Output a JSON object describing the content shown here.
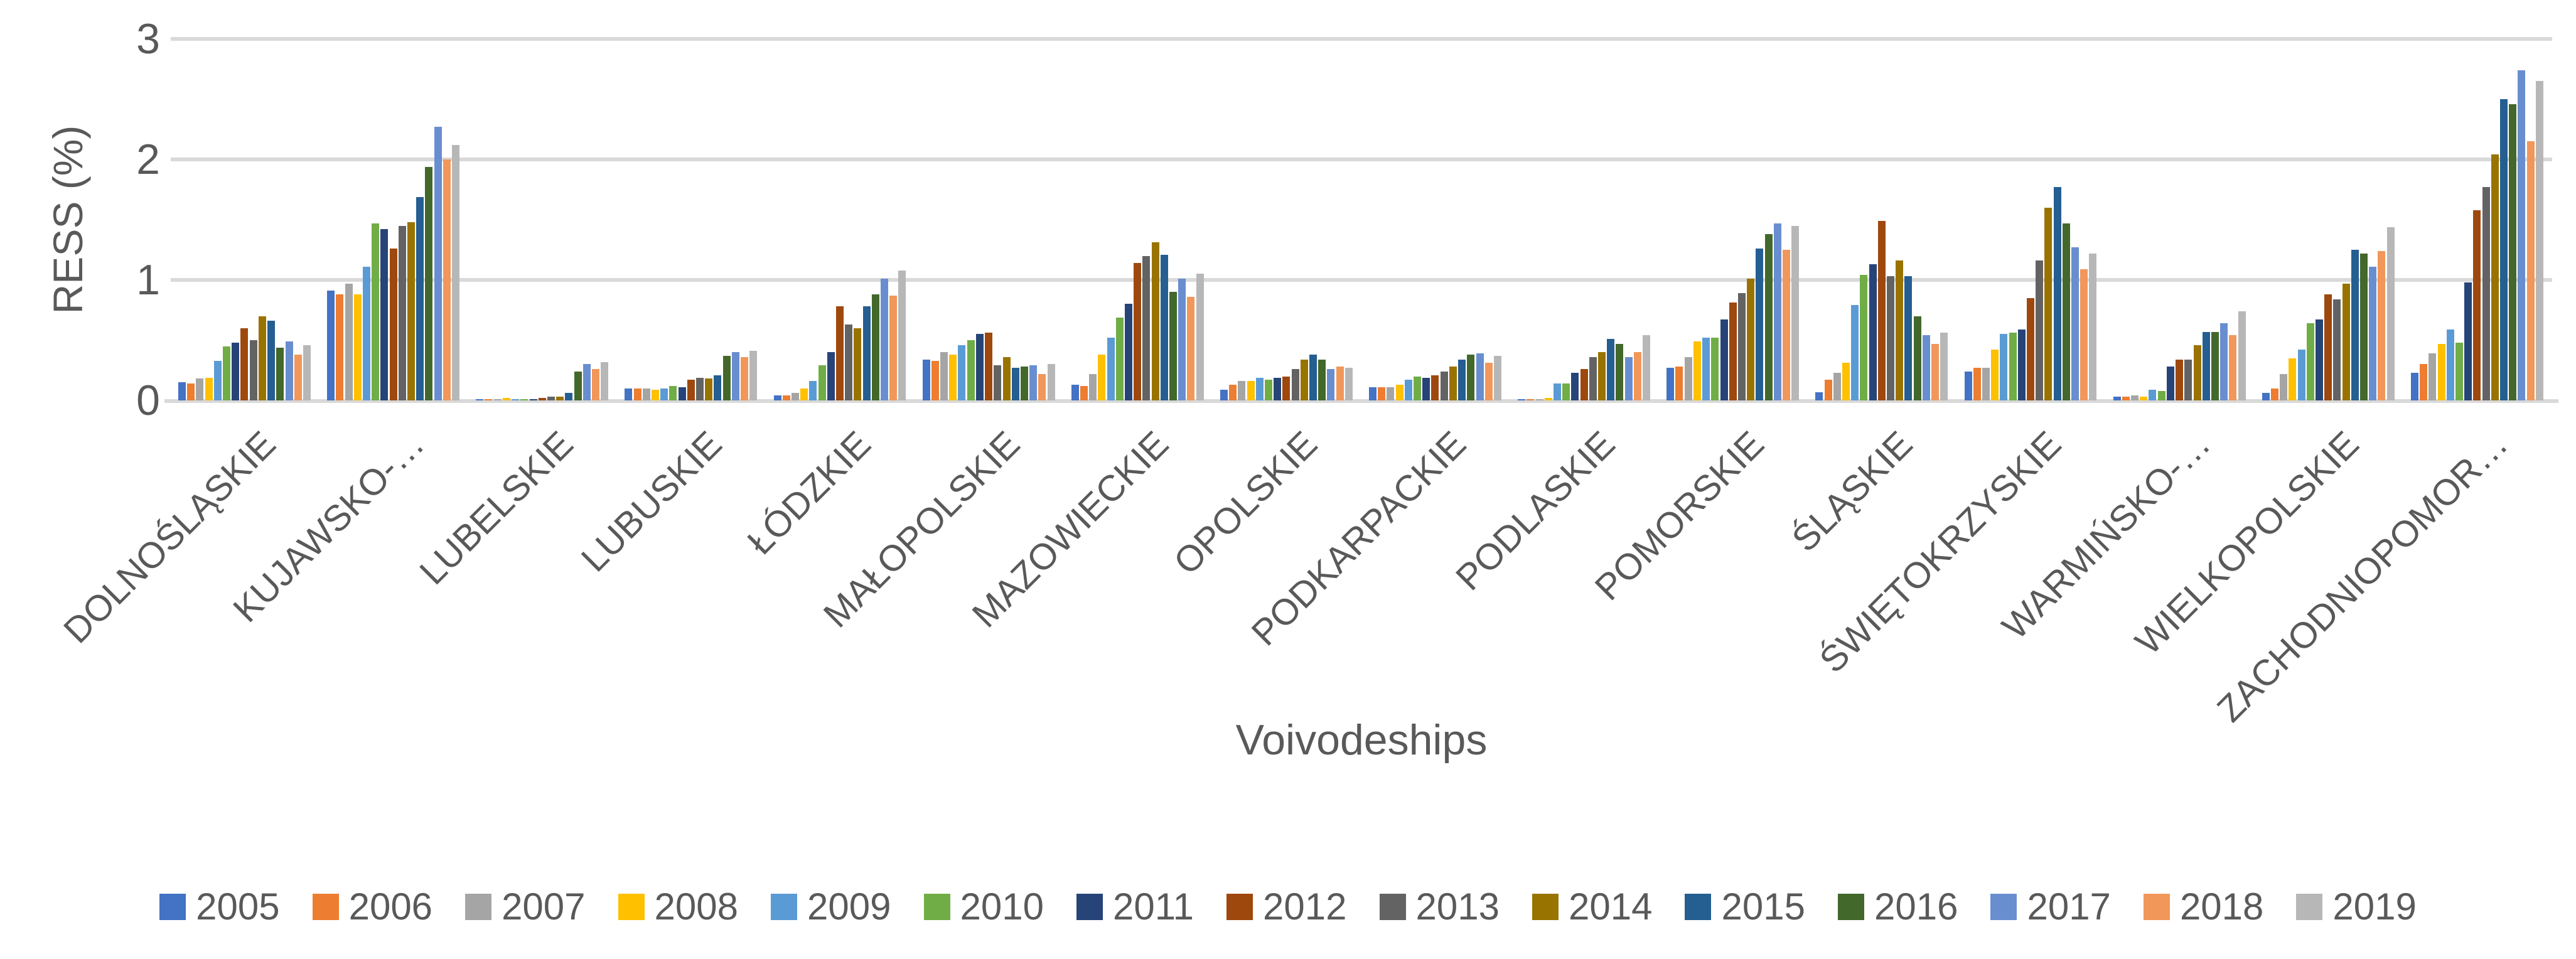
{
  "chart_data": {
    "type": "bar",
    "title": "",
    "xlabel": "Voivodeships",
    "ylabel": "RESS (%)",
    "ylim": [
      0,
      3
    ],
    "yticks": [
      "0",
      "1",
      "2",
      "3"
    ],
    "grid": "horizontal-gridlines-at-1-2-3",
    "legend_position": "bottom",
    "gridline_color": "#D9D9D9",
    "axis_text_color": "#595959",
    "categories": [
      "DOLNOŚLĄSKIE",
      "KUJAWSKO-…",
      "LUBELSKIE",
      "LUBUSKIE",
      "ŁÓDZKIE",
      "MAŁOPOLSKIE",
      "MAZOWIECKIE",
      "OPOLSKIE",
      "PODKARPACKIE",
      "PODLASKIE",
      "POMORSKIE",
      "ŚLĄSKIE",
      "ŚWIĘTOKRZYSKIE",
      "WARMIŃSKO-…",
      "WIELKOPOLSKIE",
      "ZACHODNIOPOMOR…"
    ],
    "series": [
      {
        "name": "2005",
        "color": "#4472C4",
        "values": [
          0.15,
          0.91,
          0.01,
          0.1,
          0.04,
          0.34,
          0.13,
          0.09,
          0.11,
          0.01,
          0.27,
          0.07,
          0.24,
          0.03,
          0.06,
          0.23
        ]
      },
      {
        "name": "2006",
        "color": "#ED7D31",
        "values": [
          0.14,
          0.88,
          0.01,
          0.1,
          0.04,
          0.33,
          0.12,
          0.13,
          0.11,
          0.01,
          0.28,
          0.17,
          0.27,
          0.03,
          0.1,
          0.3
        ]
      },
      {
        "name": "2007",
        "color": "#A5A5A5",
        "values": [
          0.18,
          0.97,
          0.01,
          0.1,
          0.06,
          0.4,
          0.22,
          0.16,
          0.11,
          0.01,
          0.36,
          0.23,
          0.27,
          0.04,
          0.22,
          0.39
        ]
      },
      {
        "name": "2008",
        "color": "#FFC000",
        "values": [
          0.19,
          0.88,
          0.02,
          0.09,
          0.1,
          0.38,
          0.38,
          0.16,
          0.13,
          0.02,
          0.49,
          0.31,
          0.42,
          0.03,
          0.35,
          0.47
        ]
      },
      {
        "name": "2009",
        "color": "#5B9BD5",
        "values": [
          0.33,
          1.11,
          0.01,
          0.1,
          0.16,
          0.46,
          0.52,
          0.19,
          0.17,
          0.14,
          0.52,
          0.79,
          0.55,
          0.09,
          0.42,
          0.59
        ]
      },
      {
        "name": "2010",
        "color": "#70AD47",
        "values": [
          0.45,
          1.47,
          0.01,
          0.12,
          0.29,
          0.5,
          0.69,
          0.17,
          0.2,
          0.14,
          0.52,
          1.04,
          0.56,
          0.08,
          0.64,
          0.48
        ]
      },
      {
        "name": "2011",
        "color": "#264478",
        "values": [
          0.48,
          1.42,
          0.01,
          0.11,
          0.4,
          0.55,
          0.8,
          0.19,
          0.19,
          0.23,
          0.67,
          1.13,
          0.59,
          0.28,
          0.67,
          0.98
        ]
      },
      {
        "name": "2012",
        "color": "#9E480E",
        "values": [
          0.6,
          1.26,
          0.02,
          0.17,
          0.78,
          0.56,
          1.14,
          0.2,
          0.21,
          0.26,
          0.81,
          1.49,
          0.85,
          0.34,
          0.88,
          1.58
        ]
      },
      {
        "name": "2013",
        "color": "#636363",
        "values": [
          0.5,
          1.45,
          0.03,
          0.19,
          0.63,
          0.29,
          1.2,
          0.26,
          0.24,
          0.36,
          0.89,
          1.03,
          1.16,
          0.34,
          0.84,
          1.77
        ]
      },
      {
        "name": "2014",
        "color": "#997300",
        "values": [
          0.7,
          1.48,
          0.03,
          0.18,
          0.6,
          0.36,
          1.31,
          0.34,
          0.28,
          0.4,
          1.01,
          1.16,
          1.6,
          0.46,
          0.97,
          2.04
        ]
      },
      {
        "name": "2015",
        "color": "#255E91",
        "values": [
          0.66,
          1.69,
          0.06,
          0.21,
          0.78,
          0.27,
          1.21,
          0.38,
          0.34,
          0.51,
          1.26,
          1.03,
          1.77,
          0.57,
          1.25,
          2.5
        ]
      },
      {
        "name": "2016",
        "color": "#43682B",
        "values": [
          0.44,
          1.94,
          0.24,
          0.37,
          0.88,
          0.28,
          0.9,
          0.34,
          0.38,
          0.47,
          1.38,
          0.7,
          1.47,
          0.57,
          1.22,
          2.46
        ]
      },
      {
        "name": "2017",
        "color": "#698ED0",
        "values": [
          0.49,
          2.27,
          0.3,
          0.4,
          1.01,
          0.29,
          1.01,
          0.26,
          0.39,
          0.36,
          1.47,
          0.54,
          1.27,
          0.64,
          1.11,
          2.74
        ]
      },
      {
        "name": "2018",
        "color": "#F1975A",
        "values": [
          0.38,
          2.0,
          0.26,
          0.36,
          0.87,
          0.22,
          0.86,
          0.28,
          0.31,
          0.4,
          1.25,
          0.47,
          1.09,
          0.54,
          1.24,
          2.15
        ]
      },
      {
        "name": "2019",
        "color": "#B7B7B7",
        "values": [
          0.46,
          2.12,
          0.32,
          0.41,
          1.08,
          0.3,
          1.05,
          0.27,
          0.37,
          0.54,
          1.45,
          0.56,
          1.22,
          0.74,
          1.44,
          2.65
        ]
      }
    ]
  }
}
